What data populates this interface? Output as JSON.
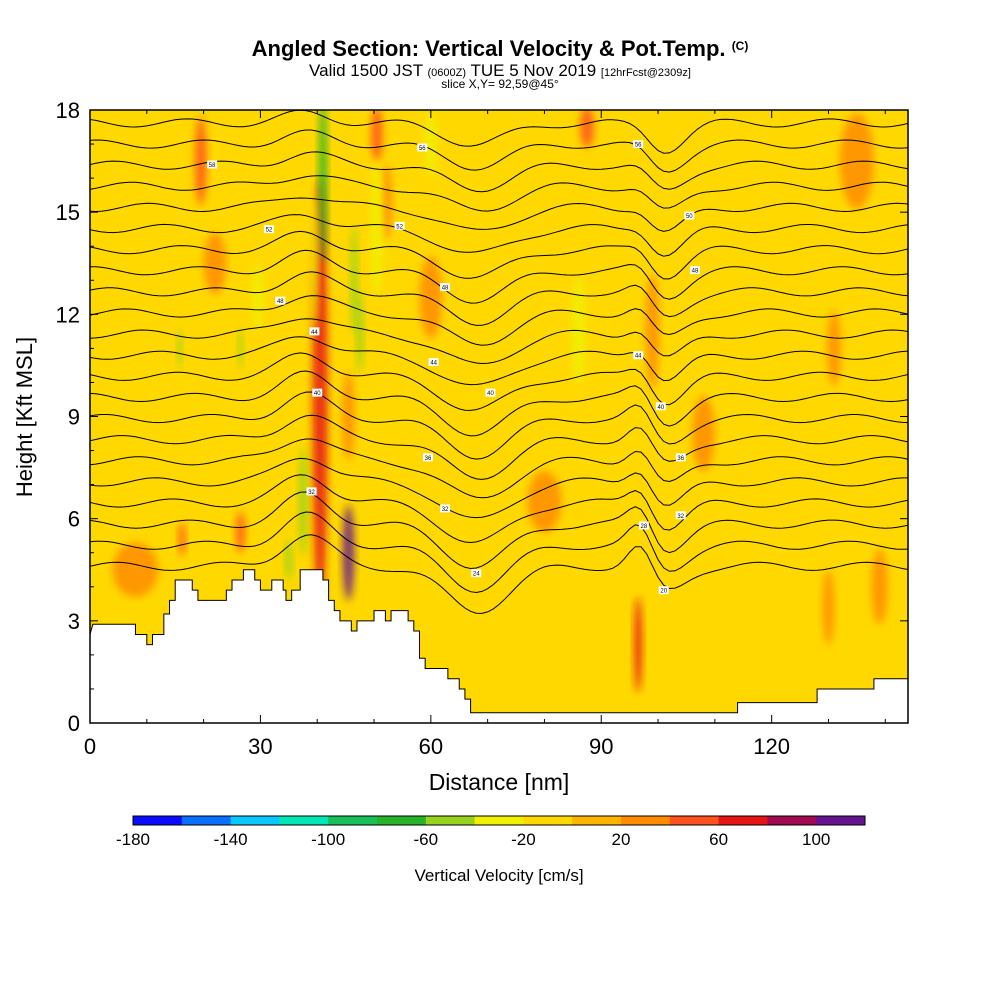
{
  "title": {
    "main": "Angled Section: Vertical Velocity & Pot.Temp.",
    "copyright": "(C)",
    "valid_prefix": "Valid 1500 JST",
    "valid_utc": "(0600Z)",
    "valid_date": "TUE 5 Nov 2019",
    "forecast": "[12hrFcst@2309z]",
    "slice": "slice X,Y= 92,59@45°"
  },
  "chart_data": {
    "type": "heatmap",
    "xlabel": "Distance [nm]",
    "ylabel": "Height [Kft MSL]",
    "xlim": [
      0,
      144
    ],
    "ylim": [
      0,
      18
    ],
    "x_ticks": [
      "0",
      "30",
      "60",
      "90",
      "120"
    ],
    "x_tick_values": [
      0,
      30,
      60,
      90,
      120
    ],
    "y_ticks": [
      "0",
      "3",
      "6",
      "9",
      "12",
      "15",
      "18"
    ],
    "y_tick_values": [
      0,
      3,
      6,
      9,
      12,
      15,
      18
    ],
    "colorbar": {
      "label": "Vertical Velocity [cm/s]",
      "min": -180,
      "max": 120,
      "step": 20,
      "tick_labels": [
        "-180",
        "-140",
        "-100",
        "-60",
        "-20",
        "20",
        "60",
        "100"
      ],
      "tick_values": [
        -180,
        -140,
        -100,
        -60,
        -20,
        20,
        60,
        100
      ],
      "colors": [
        "#0a0aff",
        "#0a6fff",
        "#0ac8ff",
        "#00e6b4",
        "#18c05a",
        "#28b428",
        "#96d21e",
        "#f0f000",
        "#ffd800",
        "#ffb400",
        "#ff8c00",
        "#ff501e",
        "#e61414",
        "#a00a50",
        "#64148c"
      ]
    },
    "background_color": "#ffd800",
    "terrain": [
      [
        0,
        2.6
      ],
      [
        0.5,
        2.9
      ],
      [
        8,
        2.9
      ],
      [
        8,
        2.6
      ],
      [
        10,
        2.6
      ],
      [
        10,
        2.3
      ],
      [
        11,
        2.3
      ],
      [
        11,
        2.6
      ],
      [
        13,
        2.6
      ],
      [
        13,
        3.2
      ],
      [
        14,
        3.2
      ],
      [
        14,
        3.6
      ],
      [
        15,
        3.6
      ],
      [
        15,
        4.2
      ],
      [
        18,
        4.2
      ],
      [
        18,
        3.9
      ],
      [
        19,
        3.9
      ],
      [
        19,
        3.6
      ],
      [
        24,
        3.6
      ],
      [
        24,
        3.9
      ],
      [
        25,
        3.9
      ],
      [
        25,
        4.2
      ],
      [
        27,
        4.2
      ],
      [
        27,
        4.5
      ],
      [
        29,
        4.5
      ],
      [
        29,
        4.2
      ],
      [
        30,
        4.2
      ],
      [
        30,
        3.9
      ],
      [
        32,
        3.9
      ],
      [
        32,
        4.2
      ],
      [
        34,
        4.2
      ],
      [
        34,
        3.9
      ],
      [
        34.5,
        3.9
      ],
      [
        34.5,
        3.6
      ],
      [
        35.5,
        3.6
      ],
      [
        35.5,
        3.9
      ],
      [
        37,
        3.9
      ],
      [
        37,
        4.5
      ],
      [
        41,
        4.5
      ],
      [
        41,
        4.2
      ],
      [
        42,
        4.2
      ],
      [
        42,
        3.6
      ],
      [
        43,
        3.6
      ],
      [
        43,
        3.3
      ],
      [
        44,
        3.3
      ],
      [
        44,
        3.0
      ],
      [
        46,
        3.0
      ],
      [
        46,
        2.7
      ],
      [
        47,
        2.7
      ],
      [
        47,
        3.0
      ],
      [
        50,
        3.0
      ],
      [
        50,
        3.3
      ],
      [
        52,
        3.3
      ],
      [
        52,
        3.0
      ],
      [
        53,
        3.0
      ],
      [
        53,
        3.3
      ],
      [
        56,
        3.3
      ],
      [
        56,
        3.0
      ],
      [
        57,
        3.0
      ],
      [
        57,
        2.7
      ],
      [
        58,
        2.7
      ],
      [
        58,
        1.9
      ],
      [
        59,
        1.9
      ],
      [
        59,
        1.6
      ],
      [
        63,
        1.6
      ],
      [
        63,
        1.3
      ],
      [
        65,
        1.3
      ],
      [
        65,
        1.0
      ],
      [
        66,
        1.0
      ],
      [
        66,
        0.7
      ],
      [
        67,
        0.7
      ],
      [
        67,
        0.3
      ],
      [
        114,
        0.3
      ],
      [
        114,
        0.6
      ],
      [
        128,
        0.6
      ],
      [
        128,
        1.0
      ],
      [
        138,
        1.0
      ],
      [
        138,
        1.3
      ],
      [
        144,
        1.3
      ]
    ],
    "updraft_cells": [
      {
        "x": 40.5,
        "y": 9.5,
        "dx": 1.3,
        "dy": 6.5,
        "value": 70
      },
      {
        "x": 45.5,
        "y": 5.0,
        "dx": 1.0,
        "dy": 1.4,
        "value": 100
      },
      {
        "x": 96.5,
        "y": 2.3,
        "dx": 0.7,
        "dy": 1.4,
        "value": 60
      },
      {
        "x": 19.5,
        "y": 16.5,
        "dx": 1.0,
        "dy": 1.3,
        "value": 50
      },
      {
        "x": 50.5,
        "y": 17.3,
        "dx": 1.0,
        "dy": 0.8,
        "value": 50
      },
      {
        "x": 87.5,
        "y": 17.5,
        "dx": 1.2,
        "dy": 0.6,
        "value": 50
      },
      {
        "x": 26.5,
        "y": 5.6,
        "dx": 0.8,
        "dy": 0.6,
        "value": 50
      },
      {
        "x": 16.2,
        "y": 5.4,
        "dx": 0.6,
        "dy": 0.5,
        "value": 40
      },
      {
        "x": 45.5,
        "y": 9.0,
        "dx": 1.1,
        "dy": 1.3,
        "value": 30
      },
      {
        "x": 52.2,
        "y": 15.3,
        "dx": 1.0,
        "dy": 1.1,
        "value": 30
      },
      {
        "x": 99.0,
        "y": 11.5,
        "dx": 1.2,
        "dy": 1.7,
        "value": 30
      },
      {
        "x": 131.0,
        "y": 11.0,
        "dx": 1.2,
        "dy": 1.1,
        "value": 30
      },
      {
        "x": 139.0,
        "y": 4.0,
        "dx": 1.4,
        "dy": 1.1,
        "value": 25
      },
      {
        "x": 130.0,
        "y": 3.4,
        "dx": 1.0,
        "dy": 1.1,
        "value": 25
      },
      {
        "x": 80.0,
        "y": 6.5,
        "dx": 3.0,
        "dy": 0.9,
        "value": 25
      },
      {
        "x": 22.0,
        "y": 13.5,
        "dx": 2.0,
        "dy": 0.9,
        "value": 25
      },
      {
        "x": 8.0,
        "y": 4.5,
        "dx": 4.0,
        "dy": 0.8,
        "value": 25
      },
      {
        "x": 135.0,
        "y": 16.5,
        "dx": 3.0,
        "dy": 1.4,
        "value": 25
      },
      {
        "x": 60.0,
        "y": 12.5,
        "dx": 2.0,
        "dy": 1.2,
        "value": 25
      },
      {
        "x": 108.0,
        "y": 8.5,
        "dx": 2.0,
        "dy": 1.1,
        "value": 25
      }
    ],
    "downdraft_cells": [
      {
        "x": 41.0,
        "y": 16.0,
        "dx": 0.7,
        "dy": 2.5,
        "value": -70
      },
      {
        "x": 37.5,
        "y": 6.5,
        "dx": 0.7,
        "dy": 1.6,
        "value": -50
      },
      {
        "x": 46.5,
        "y": 13.0,
        "dx": 0.6,
        "dy": 1.6,
        "value": -50
      },
      {
        "x": 47.5,
        "y": 11.5,
        "dx": 0.6,
        "dy": 1.2,
        "value": -50
      },
      {
        "x": 39.5,
        "y": 13.5,
        "dx": 0.6,
        "dy": 2.0,
        "value": -30
      },
      {
        "x": 35.0,
        "y": 4.8,
        "dx": 0.6,
        "dy": 0.6,
        "value": -50
      },
      {
        "x": 15.8,
        "y": 11.0,
        "dx": 0.4,
        "dy": 0.6,
        "value": -50
      },
      {
        "x": 26.5,
        "y": 11.0,
        "dx": 0.4,
        "dy": 0.6,
        "value": -50
      },
      {
        "x": 50.5,
        "y": 14.5,
        "dx": 1.0,
        "dy": 2.0,
        "value": -25
      },
      {
        "x": 86.0,
        "y": 11.5,
        "dx": 1.2,
        "dy": 1.6,
        "value": -25
      },
      {
        "x": 60.0,
        "y": 17.0,
        "dx": 1.0,
        "dy": 1.0,
        "value": -25
      },
      {
        "x": 29.5,
        "y": 12.5,
        "dx": 1.0,
        "dy": 1.0,
        "value": -25
      }
    ],
    "isentrope_labels": [
      {
        "x": 21.5,
        "y": 16.4,
        "text": "58"
      },
      {
        "x": 58.5,
        "y": 16.9,
        "text": "56"
      },
      {
        "x": 96.5,
        "y": 17.0,
        "text": "56"
      },
      {
        "x": 31.5,
        "y": 14.5,
        "text": "52"
      },
      {
        "x": 54.5,
        "y": 14.6,
        "text": "52"
      },
      {
        "x": 105.5,
        "y": 14.9,
        "text": "50"
      },
      {
        "x": 106.5,
        "y": 13.3,
        "text": "48"
      },
      {
        "x": 33.5,
        "y": 12.4,
        "text": "48"
      },
      {
        "x": 62.5,
        "y": 12.8,
        "text": "48"
      },
      {
        "x": 39.5,
        "y": 11.5,
        "text": "44"
      },
      {
        "x": 60.5,
        "y": 10.6,
        "text": "44"
      },
      {
        "x": 96.5,
        "y": 10.8,
        "text": "44"
      },
      {
        "x": 40.0,
        "y": 9.7,
        "text": "40"
      },
      {
        "x": 70.5,
        "y": 9.7,
        "text": "40"
      },
      {
        "x": 100.5,
        "y": 9.3,
        "text": "40"
      },
      {
        "x": 59.5,
        "y": 7.8,
        "text": "36"
      },
      {
        "x": 104.0,
        "y": 7.8,
        "text": "36"
      },
      {
        "x": 39.0,
        "y": 6.8,
        "text": "32"
      },
      {
        "x": 62.5,
        "y": 6.3,
        "text": "32"
      },
      {
        "x": 104.0,
        "y": 6.1,
        "text": "32"
      },
      {
        "x": 97.5,
        "y": 5.8,
        "text": "28"
      },
      {
        "x": 68.0,
        "y": 4.4,
        "text": "24"
      },
      {
        "x": 101.0,
        "y": 3.9,
        "text": "20"
      }
    ]
  }
}
